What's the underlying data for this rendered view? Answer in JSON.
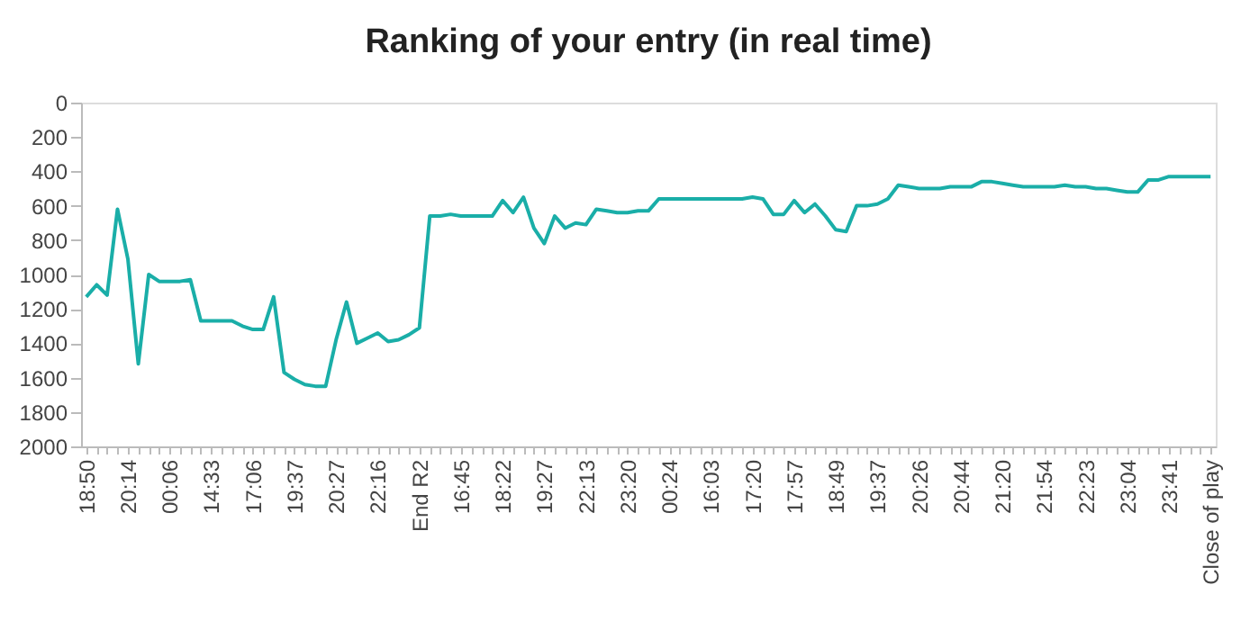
{
  "chart_data": {
    "type": "line",
    "title": "Ranking of your entry (in real time)",
    "categories": [
      "18:50",
      null,
      null,
      null,
      "20:14",
      null,
      null,
      null,
      "00:06",
      null,
      null,
      null,
      "14:33",
      null,
      null,
      null,
      "17:06",
      null,
      null,
      null,
      "19:37",
      null,
      null,
      null,
      "20:27",
      null,
      null,
      null,
      "22:16",
      null,
      null,
      null,
      "End R2",
      null,
      null,
      null,
      "16:45",
      null,
      null,
      null,
      "18:22",
      null,
      null,
      null,
      "19:27",
      null,
      null,
      null,
      "22:13",
      null,
      null,
      null,
      "23:20",
      null,
      null,
      null,
      "00:24",
      null,
      null,
      null,
      "16:03",
      null,
      null,
      null,
      "17:20",
      null,
      null,
      null,
      "17:57",
      null,
      null,
      null,
      "18:49",
      null,
      null,
      null,
      "19:37",
      null,
      null,
      null,
      "20:26",
      null,
      null,
      null,
      "20:44",
      null,
      null,
      null,
      "21:20",
      null,
      null,
      null,
      "21:54",
      null,
      null,
      null,
      "22:23",
      null,
      null,
      null,
      "23:04",
      null,
      null,
      null,
      "23:41",
      null,
      null,
      null,
      "Close of play"
    ],
    "series": [
      {
        "color": "#1aaea8",
        "values": [
          1130,
          1060,
          1120,
          620,
          910,
          1520,
          1000,
          1040,
          1040,
          1040,
          1030,
          1270,
          1270,
          1270,
          1270,
          1300,
          1320,
          1320,
          1130,
          1570,
          1610,
          1640,
          1650,
          1650,
          1380,
          1160,
          1400,
          1370,
          1340,
          1390,
          1380,
          1350,
          1310,
          660,
          660,
          650,
          660,
          660,
          660,
          660,
          570,
          640,
          550,
          730,
          820,
          660,
          730,
          700,
          710,
          620,
          630,
          640,
          640,
          630,
          630,
          560,
          560,
          560,
          560,
          560,
          560,
          560,
          560,
          560,
          550,
          560,
          650,
          650,
          570,
          640,
          590,
          660,
          740,
          750,
          600,
          600,
          590,
          560,
          480,
          490,
          500,
          500,
          500,
          490,
          490,
          490,
          460,
          460,
          470,
          480,
          490,
          490,
          490,
          490,
          480,
          490,
          490,
          500,
          500,
          510,
          520,
          520,
          450,
          450,
          430,
          430,
          430,
          430,
          430
        ]
      }
    ],
    "ylim": [
      2000,
      0
    ],
    "yticks": [
      0,
      200,
      400,
      600,
      800,
      {
        "value": 1000,
        "label": "1000"
      },
      {
        "value": 1200,
        "label": "1200"
      },
      {
        "value": 1400,
        "label": "1400"
      },
      {
        "value": 1600,
        "label": "1600"
      },
      {
        "value": 1800,
        "label": "1800"
      },
      {
        "value": 2000,
        "label": "2000"
      }
    ],
    "grid": false,
    "marker": "none",
    "line_style": "solid"
  }
}
